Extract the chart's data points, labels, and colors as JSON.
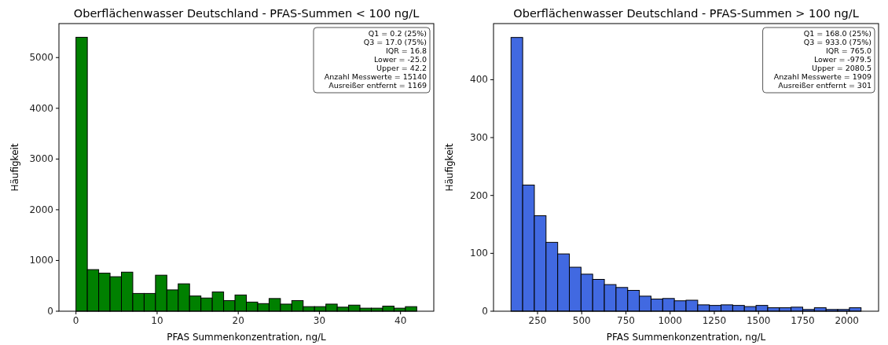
{
  "chart_data": [
    {
      "type": "histogram",
      "title": "Oberflächenwasser Deutschland - PFAS-Summen < 100 ng/L",
      "xlabel": "PFAS Summenkonzentration, ng/L",
      "ylabel": "Häufigkeit",
      "color": "#008000",
      "bins": [
        0,
        1.4,
        2.8,
        4.2,
        5.6,
        7,
        8.4,
        9.8,
        11.2,
        12.6,
        14,
        15.4,
        16.8,
        18.2,
        19.6,
        21,
        22.4,
        23.8,
        25.2,
        26.6,
        28,
        29.4,
        30.8,
        32.2,
        33.6,
        35,
        36.4,
        37.8,
        39.2,
        40.6,
        42
      ],
      "values": [
        5400,
        820,
        750,
        680,
        770,
        350,
        350,
        710,
        420,
        540,
        300,
        260,
        380,
        210,
        320,
        180,
        150,
        250,
        140,
        210,
        90,
        90,
        140,
        80,
        120,
        60,
        60,
        100,
        60,
        90
      ],
      "xlim": [
        -2.1,
        44.1
      ],
      "ylim": [
        0,
        5670
      ],
      "xticks": [
        0,
        10,
        20,
        30,
        40
      ],
      "yticks": [
        0,
        1000,
        2000,
        3000,
        4000,
        5000
      ],
      "annotations": [
        "Q1 = 0.2 (25%)",
        "Q3 = 17.0 (75%)",
        "IQR = 16.8",
        "Lower = -25.0",
        "Upper = 42.2",
        "Anzahl Messwerte = 15140",
        "Ausreißer entfernt = 1169"
      ]
    },
    {
      "type": "histogram",
      "title": "Oberflächenwasser Deutschland - PFAS-Summen > 100 ng/L",
      "xlabel": "PFAS Summenkonzentration, ng/L",
      "ylabel": "Häufigkeit",
      "color": "#4169e1",
      "bins": [
        100,
        166,
        232,
        298,
        364,
        430,
        496,
        562,
        628,
        694,
        760,
        826,
        892,
        958,
        1024,
        1090,
        1156,
        1222,
        1288,
        1354,
        1420,
        1486,
        1552,
        1618,
        1684,
        1750,
        1816,
        1882,
        1948,
        2014,
        2080
      ],
      "values": [
        473,
        218,
        165,
        119,
        99,
        76,
        64,
        55,
        46,
        41,
        36,
        26,
        21,
        22,
        18,
        19,
        11,
        10,
        11,
        10,
        8,
        10,
        6,
        6,
        7,
        3,
        6,
        3,
        3,
        6
      ],
      "xlim": [
        1,
        2179
      ],
      "ylim": [
        0,
        497
      ],
      "xticks": [
        250,
        500,
        750,
        1000,
        1250,
        1500,
        1750,
        2000
      ],
      "yticks": [
        0,
        100,
        200,
        300,
        400
      ],
      "annotations": [
        "Q1 = 168.0 (25%)",
        "Q3 = 933.0 (75%)",
        "IQR = 765.0",
        "Lower = -979.5",
        "Upper = 2080.5",
        "Anzahl Messwerte = 1909",
        "Ausreißer entfernt = 301"
      ]
    }
  ]
}
